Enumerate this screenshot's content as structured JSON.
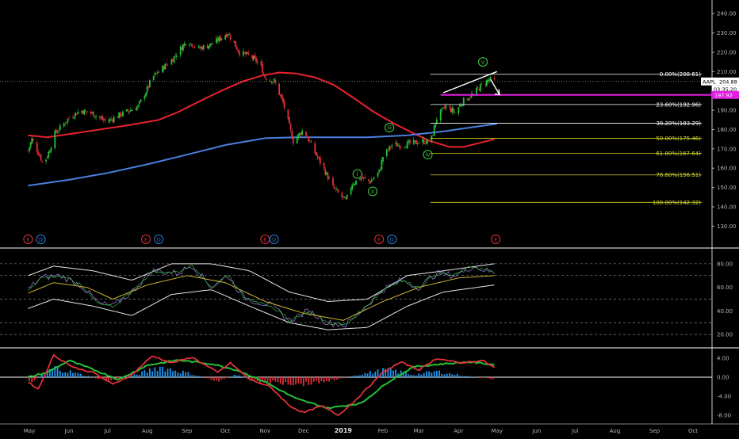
{
  "chart_data": {
    "type": "candlestick",
    "ticker": "AAPL",
    "colors": {
      "background": "#000000",
      "axis_text": "#b2b5be",
      "grid": "#2a2e39",
      "candle_up": "#26c037",
      "candle_down": "#e0303a",
      "ma_red": "#e8232d",
      "ma_blue": "#4a7fe0",
      "fib_lines": "#d6d62a",
      "fib_white": "#ffffff",
      "price_label_bg": "#ffffff",
      "level_magenta": "#e11ee1",
      "wave_label": "#3fd13f",
      "event_e": "#e0303a",
      "event_d": "#2a7fe0",
      "rsi_series": "#9b6bd6",
      "rsi_signal": "#c9b431",
      "rsi_bands": "#e6e6e6",
      "macd_line": "#e0303a",
      "macd_signal": "#26c037",
      "hist_pos": "#2196f3",
      "hist_neg": "#e0303a"
    },
    "x_axis": {
      "labels": [
        "May",
        "Jun",
        "Jul",
        "Aug",
        "Sep",
        "Oct",
        "Nov",
        "Dec",
        "2019",
        "Feb",
        "Mar",
        "Apr",
        "May",
        "Jun",
        "Jul",
        "Aug",
        "Sep",
        "Oct"
      ],
      "bold_index": 8
    },
    "price_axis": {
      "ticks": [
        "240.00",
        "230.00",
        "220.00",
        "210.00",
        "200.00",
        "190.00",
        "180.00",
        "170.00",
        "160.00",
        "150.00",
        "140.00",
        "130.00"
      ],
      "range": [
        124,
        245
      ]
    },
    "price_series": {
      "points": [
        [
          "2018-04-30",
          169
        ],
        [
          "2018-05-03",
          175
        ],
        [
          "2018-05-08",
          168
        ],
        [
          "2018-05-12",
          162
        ],
        [
          "2018-05-16",
          168
        ],
        [
          "2018-05-21",
          178
        ],
        [
          "2018-06-01",
          186
        ],
        [
          "2018-06-10",
          190
        ],
        [
          "2018-06-20",
          188
        ],
        [
          "2018-06-30",
          184
        ],
        [
          "2018-07-12",
          188
        ],
        [
          "2018-07-25",
          192
        ],
        [
          "2018-08-01",
          201
        ],
        [
          "2018-08-05",
          207
        ],
        [
          "2018-08-20",
          216
        ],
        [
          "2018-09-01",
          226
        ],
        [
          "2018-09-10",
          222
        ],
        [
          "2018-09-20",
          224
        ],
        [
          "2018-10-03",
          230
        ],
        [
          "2018-10-12",
          220
        ],
        [
          "2018-10-20",
          218
        ],
        [
          "2018-10-28",
          214
        ],
        [
          "2018-11-01",
          207
        ],
        [
          "2018-11-08",
          205
        ],
        [
          "2018-11-15",
          194
        ],
        [
          "2018-11-23",
          174
        ],
        [
          "2018-12-01",
          180
        ],
        [
          "2018-12-10",
          168
        ],
        [
          "2018-12-18",
          158
        ],
        [
          "2018-12-24",
          150
        ],
        [
          "2018-12-28",
          147
        ],
        [
          "2019-01-03",
          143
        ],
        [
          "2019-01-08",
          152
        ],
        [
          "2019-01-15",
          155
        ],
        [
          "2019-01-22",
          153
        ],
        [
          "2019-01-29",
          158
        ],
        [
          "2019-02-01",
          166
        ],
        [
          "2019-02-08",
          172
        ],
        [
          "2019-02-15",
          172
        ],
        [
          "2019-02-25",
          173
        ],
        [
          "2019-03-05",
          174
        ],
        [
          "2019-03-10",
          173
        ],
        [
          "2019-03-15",
          186
        ],
        [
          "2019-03-22",
          192
        ],
        [
          "2019-03-29",
          189
        ],
        [
          "2019-04-05",
          195
        ],
        [
          "2019-04-12",
          198
        ],
        [
          "2019-04-19",
          203
        ],
        [
          "2019-04-25",
          206
        ],
        [
          "2019-04-29",
          205
        ]
      ]
    },
    "moving_averages": [
      {
        "color_key": "ma_red",
        "points": [
          [
            "2018-04-30",
            177
          ],
          [
            "2018-05-15",
            176
          ],
          [
            "2018-06-15",
            179
          ],
          [
            "2018-07-15",
            182
          ],
          [
            "2018-08-10",
            185
          ],
          [
            "2018-08-25",
            189
          ],
          [
            "2018-09-15",
            196
          ],
          [
            "2018-10-01",
            201
          ],
          [
            "2018-10-15",
            205
          ],
          [
            "2018-10-30",
            208
          ],
          [
            "2018-11-12",
            209.5
          ],
          [
            "2018-11-25",
            209
          ],
          [
            "2018-12-10",
            207
          ],
          [
            "2018-12-25",
            203
          ],
          [
            "2019-01-10",
            196
          ],
          [
            "2019-01-25",
            189
          ],
          [
            "2019-02-10",
            183
          ],
          [
            "2019-02-25",
            178
          ],
          [
            "2019-03-10",
            174
          ],
          [
            "2019-03-25",
            171
          ],
          [
            "2019-04-05",
            171
          ],
          [
            "2019-04-20",
            173.5
          ],
          [
            "2019-04-29",
            175
          ]
        ]
      },
      {
        "color_key": "ma_blue",
        "points": [
          [
            "2018-04-30",
            151
          ],
          [
            "2018-06-01",
            154
          ],
          [
            "2018-07-01",
            157.5
          ],
          [
            "2018-08-01",
            162
          ],
          [
            "2018-09-01",
            167
          ],
          [
            "2018-10-01",
            172
          ],
          [
            "2018-11-01",
            175.5
          ],
          [
            "2018-11-25",
            176
          ],
          [
            "2018-12-20",
            176
          ],
          [
            "2019-01-20",
            176
          ],
          [
            "2019-02-20",
            177
          ],
          [
            "2019-03-20",
            179
          ],
          [
            "2019-04-20",
            182
          ],
          [
            "2019-05-01",
            183
          ]
        ]
      }
    ],
    "trend_line": [
      [
        "2019-03-20",
        199
      ],
      [
        "2019-05-01",
        210
      ]
    ],
    "forecast_arrow": [
      [
        "2019-04-26",
        206
      ],
      [
        "2019-05-03",
        198
      ]
    ],
    "fibonacci": [
      {
        "label": "0.00%(208.61)",
        "value": 208.61,
        "color_key": "fib_white"
      },
      {
        "label": "23.60%(192.96)",
        "value": 192.96,
        "color_key": "fib_white"
      },
      {
        "label": "38.20%(183.29)",
        "value": 183.29,
        "color_key": "fib_white"
      },
      {
        "label": "50.00%(175.46)",
        "value": 175.46,
        "color_key": "fib_lines"
      },
      {
        "label": "61.80%(167.64)",
        "value": 167.64,
        "color_key": "fib_lines"
      },
      {
        "label": "78.60%(156.51)",
        "value": 156.51,
        "color_key": "fib_lines"
      },
      {
        "label": "100.00%(142.32)",
        "value": 142.32,
        "color_key": "fib_lines"
      }
    ],
    "fib_start_date": "2019-03-10",
    "current_price": {
      "ticker": "AAPL",
      "value": "204.88",
      "countdown": "03:35:20"
    },
    "magenta_level": {
      "value": "197.92",
      "numeric": 197.92
    },
    "wave_labels": [
      {
        "text": "i",
        "date": "2019-01-12",
        "price": 157
      },
      {
        "text": "ii",
        "date": "2019-01-24",
        "price": 148
      },
      {
        "text": "iii",
        "date": "2019-02-06",
        "price": 181
      },
      {
        "text": "iv",
        "date": "2019-03-08",
        "price": 167
      },
      {
        "text": "v",
        "date": "2019-04-20",
        "price": 215
      }
    ],
    "events": [
      {
        "type": "E",
        "date": "2018-04-30"
      },
      {
        "type": "D",
        "date": "2018-05-10"
      },
      {
        "type": "E",
        "date": "2018-07-31"
      },
      {
        "type": "D",
        "date": "2018-08-10"
      },
      {
        "type": "E",
        "date": "2018-11-01"
      },
      {
        "type": "D",
        "date": "2018-11-08"
      },
      {
        "type": "E",
        "date": "2019-01-29"
      },
      {
        "type": "D",
        "date": "2019-02-08"
      },
      {
        "type": "E",
        "date": "2019-04-30"
      }
    ],
    "rsi_axis": {
      "ticks": [
        "80.00",
        "60.00",
        "40.00",
        "20.00"
      ],
      "range": [
        12,
        90
      ],
      "dashed_levels": [
        80,
        70,
        50,
        30,
        20
      ]
    },
    "rsi_series": [
      [
        "2018-04-30",
        58
      ],
      [
        "2018-05-10",
        68
      ],
      [
        "2018-05-25",
        70
      ],
      [
        "2018-06-10",
        62
      ],
      [
        "2018-06-25",
        46
      ],
      [
        "2018-07-05",
        44
      ],
      [
        "2018-07-20",
        56
      ],
      [
        "2018-08-05",
        74
      ],
      [
        "2018-08-25",
        72
      ],
      [
        "2018-09-05",
        79
      ],
      [
        "2018-09-20",
        60
      ],
      [
        "2018-10-03",
        70
      ],
      [
        "2018-10-15",
        52
      ],
      [
        "2018-10-25",
        48
      ],
      [
        "2018-11-05",
        45
      ],
      [
        "2018-11-20",
        32
      ],
      [
        "2018-12-05",
        40
      ],
      [
        "2018-12-20",
        30
      ],
      [
        "2019-01-03",
        28
      ],
      [
        "2019-01-15",
        40
      ],
      [
        "2019-02-01",
        58
      ],
      [
        "2019-02-15",
        66
      ],
      [
        "2019-03-01",
        60
      ],
      [
        "2019-03-15",
        72
      ],
      [
        "2019-03-29",
        70
      ],
      [
        "2019-04-12",
        78
      ],
      [
        "2019-04-29",
        72
      ]
    ],
    "rsi_signal": [
      [
        "2018-04-30",
        55
      ],
      [
        "2018-05-20",
        64
      ],
      [
        "2018-06-15",
        60
      ],
      [
        "2018-07-05",
        50
      ],
      [
        "2018-08-01",
        62
      ],
      [
        "2018-09-01",
        70
      ],
      [
        "2018-10-01",
        64
      ],
      [
        "2018-11-01",
        48
      ],
      [
        "2018-12-01",
        38
      ],
      [
        "2019-01-01",
        32
      ],
      [
        "2019-02-01",
        48
      ],
      [
        "2019-03-01",
        60
      ],
      [
        "2019-04-01",
        68
      ],
      [
        "2019-04-29",
        70
      ]
    ],
    "rsi_band_upper": [
      [
        "2018-04-30",
        70
      ],
      [
        "2018-05-20",
        78
      ],
      [
        "2018-06-20",
        74
      ],
      [
        "2018-07-20",
        66
      ],
      [
        "2018-08-20",
        80
      ],
      [
        "2018-09-20",
        80
      ],
      [
        "2018-10-20",
        74
      ],
      [
        "2018-11-20",
        56
      ],
      [
        "2018-12-20",
        48
      ],
      [
        "2019-01-20",
        50
      ],
      [
        "2019-02-20",
        70
      ],
      [
        "2019-03-20",
        74
      ],
      [
        "2019-04-29",
        80
      ]
    ],
    "rsi_band_lower": [
      [
        "2018-04-30",
        42
      ],
      [
        "2018-05-20",
        50
      ],
      [
        "2018-06-20",
        44
      ],
      [
        "2018-07-20",
        36
      ],
      [
        "2018-08-20",
        54
      ],
      [
        "2018-09-20",
        58
      ],
      [
        "2018-10-20",
        44
      ],
      [
        "2018-11-20",
        30
      ],
      [
        "2018-12-20",
        24
      ],
      [
        "2019-01-20",
        26
      ],
      [
        "2019-02-20",
        44
      ],
      [
        "2019-03-20",
        56
      ],
      [
        "2019-04-29",
        62
      ]
    ],
    "macd_axis": {
      "ticks": [
        "4.00",
        "0.00",
        "-4.00",
        "-8.00"
      ],
      "range": [
        -9.5,
        5.5
      ]
    },
    "macd_line": [
      [
        "2018-04-30",
        -1
      ],
      [
        "2018-05-08",
        -2.5
      ],
      [
        "2018-05-20",
        4.6
      ],
      [
        "2018-06-05",
        2
      ],
      [
        "2018-06-20",
        1
      ],
      [
        "2018-07-05",
        -1.5
      ],
      [
        "2018-07-20",
        0.5
      ],
      [
        "2018-08-05",
        4.5
      ],
      [
        "2018-08-20",
        3
      ],
      [
        "2018-09-05",
        4.2
      ],
      [
        "2018-09-25",
        1
      ],
      [
        "2018-10-05",
        3
      ],
      [
        "2018-10-20",
        -0.5
      ],
      [
        "2018-11-05",
        -2
      ],
      [
        "2018-11-20",
        -6
      ],
      [
        "2018-12-01",
        -7.5
      ],
      [
        "2018-12-15",
        -6
      ],
      [
        "2018-12-28",
        -8
      ],
      [
        "2019-01-10",
        -5
      ],
      [
        "2019-02-01",
        1
      ],
      [
        "2019-02-15",
        3.2
      ],
      [
        "2019-03-01",
        1.5
      ],
      [
        "2019-03-15",
        4
      ],
      [
        "2019-04-01",
        3
      ],
      [
        "2019-04-20",
        3.5
      ],
      [
        "2019-04-29",
        2
      ]
    ],
    "macd_signal": [
      [
        "2018-04-30",
        0
      ],
      [
        "2018-05-15",
        1
      ],
      [
        "2018-06-01",
        3.5
      ],
      [
        "2018-06-20",
        1.6
      ],
      [
        "2018-07-10",
        -0.5
      ],
      [
        "2018-08-01",
        2.5
      ],
      [
        "2018-08-25",
        3.6
      ],
      [
        "2018-09-20",
        2.8
      ],
      [
        "2018-10-10",
        1.5
      ],
      [
        "2018-11-01",
        -1
      ],
      [
        "2018-11-25",
        -4.5
      ],
      [
        "2018-12-20",
        -6.5
      ],
      [
        "2019-01-15",
        -5.5
      ],
      [
        "2019-02-05",
        -1
      ],
      [
        "2019-02-25",
        2.2
      ],
      [
        "2019-03-20",
        2.8
      ],
      [
        "2019-04-10",
        3.2
      ],
      [
        "2019-04-29",
        2.6
      ]
    ],
    "macd_hist": [
      [
        "2018-05-01",
        -1.2
      ],
      [
        "2018-05-20",
        2.0
      ],
      [
        "2018-06-10",
        0.6
      ],
      [
        "2018-07-01",
        -0.8
      ],
      [
        "2018-07-25",
        0.6
      ],
      [
        "2018-08-10",
        2.2
      ],
      [
        "2018-09-01",
        0.9
      ],
      [
        "2018-09-25",
        -0.8
      ],
      [
        "2018-10-10",
        0.6
      ],
      [
        "2018-10-25",
        -0.9
      ],
      [
        "2018-11-15",
        -1.2
      ],
      [
        "2018-12-01",
        -1.4
      ],
      [
        "2018-12-20",
        -0.8
      ],
      [
        "2019-01-10",
        0.4
      ],
      [
        "2019-02-05",
        1.6
      ],
      [
        "2019-02-25",
        0.5
      ],
      [
        "2019-03-15",
        1.2
      ],
      [
        "2019-04-05",
        0.3
      ],
      [
        "2019-04-29",
        -0.4
      ]
    ]
  }
}
